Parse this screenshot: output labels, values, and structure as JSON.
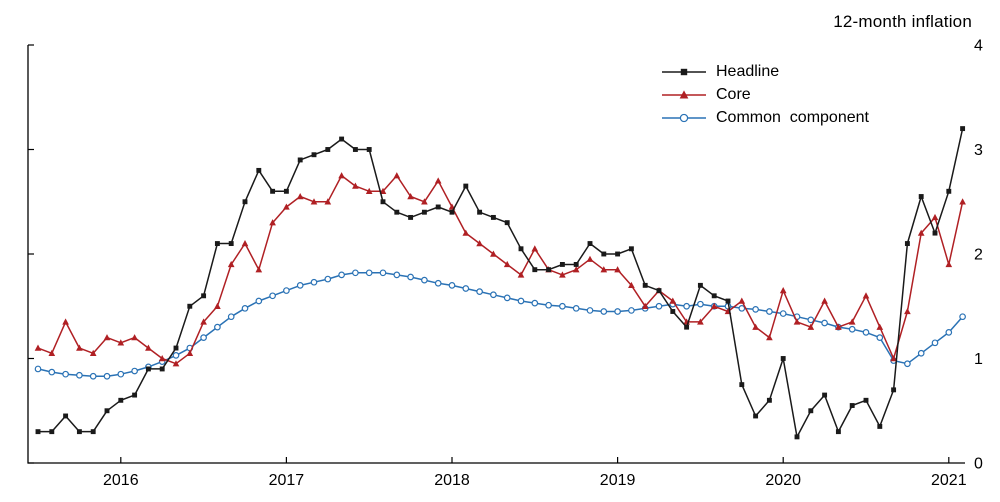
{
  "title": "12-month inflation",
  "chart_data": {
    "type": "line",
    "title": "12-month inflation",
    "xlabel": "",
    "ylabel": "",
    "ylim": [
      0,
      4
    ],
    "y_ticks": [
      0,
      1,
      2,
      3,
      4
    ],
    "y_axis_label_side": "right",
    "grid": false,
    "legend_position": "top-right-inside",
    "frequency": "monthly",
    "x_start": "2015-07",
    "x_end": "2021-02",
    "n_points": 68,
    "x_tick_labels": [
      "2016",
      "2017",
      "2018",
      "2019",
      "2020",
      "2021"
    ],
    "x_tick_month_indices": [
      6,
      18,
      30,
      42,
      54,
      66
    ],
    "series": [
      {
        "id": "headline",
        "name": "Headline",
        "color": "#1a1a1a",
        "marker": "square",
        "values": [
          0.3,
          0.3,
          0.45,
          0.3,
          0.3,
          0.5,
          0.6,
          0.65,
          0.9,
          0.9,
          1.1,
          1.5,
          1.6,
          2.1,
          2.1,
          2.5,
          2.8,
          2.6,
          2.6,
          2.9,
          2.95,
          3.0,
          3.1,
          3.0,
          3.0,
          2.5,
          2.4,
          2.35,
          2.4,
          2.45,
          2.4,
          2.65,
          2.4,
          2.35,
          2.3,
          2.05,
          1.85,
          1.85,
          1.9,
          1.9,
          2.1,
          2.0,
          2.0,
          2.05,
          1.7,
          1.65,
          1.45,
          1.3,
          1.7,
          1.6,
          1.55,
          0.75,
          0.45,
          0.6,
          1.0,
          0.25,
          0.5,
          0.65,
          0.3,
          0.55,
          0.6,
          0.35,
          0.7,
          2.1,
          2.55,
          2.2,
          2.6,
          3.2
        ]
      },
      {
        "id": "core",
        "name": "Core",
        "color": "#b02024",
        "marker": "triangle",
        "values": [
          1.1,
          1.05,
          1.35,
          1.1,
          1.05,
          1.2,
          1.15,
          1.2,
          1.1,
          1.0,
          0.95,
          1.05,
          1.35,
          1.5,
          1.9,
          2.1,
          1.85,
          2.3,
          2.45,
          2.55,
          2.5,
          2.5,
          2.75,
          2.65,
          2.6,
          2.6,
          2.75,
          2.55,
          2.5,
          2.7,
          2.45,
          2.2,
          2.1,
          2.0,
          1.9,
          1.8,
          2.05,
          1.85,
          1.8,
          1.85,
          1.95,
          1.85,
          1.85,
          1.7,
          1.5,
          1.65,
          1.55,
          1.35,
          1.35,
          1.5,
          1.45,
          1.55,
          1.3,
          1.2,
          1.65,
          1.35,
          1.3,
          1.55,
          1.3,
          1.35,
          1.6,
          1.3,
          1.0,
          1.45,
          2.2,
          2.35,
          1.9,
          2.5
        ]
      },
      {
        "id": "common-component",
        "name": "Common  component",
        "color": "#2a72b5",
        "marker": "circle",
        "values": [
          0.9,
          0.87,
          0.85,
          0.84,
          0.83,
          0.83,
          0.85,
          0.88,
          0.92,
          0.97,
          1.03,
          1.1,
          1.2,
          1.3,
          1.4,
          1.48,
          1.55,
          1.6,
          1.65,
          1.7,
          1.73,
          1.76,
          1.8,
          1.82,
          1.82,
          1.82,
          1.8,
          1.78,
          1.75,
          1.72,
          1.7,
          1.67,
          1.64,
          1.61,
          1.58,
          1.55,
          1.53,
          1.51,
          1.5,
          1.48,
          1.46,
          1.45,
          1.45,
          1.46,
          1.48,
          1.5,
          1.52,
          1.5,
          1.52,
          1.5,
          1.5,
          1.48,
          1.47,
          1.45,
          1.43,
          1.4,
          1.37,
          1.34,
          1.3,
          1.28,
          1.25,
          1.2,
          0.98,
          0.95,
          1.05,
          1.15,
          1.25,
          1.4
        ]
      }
    ]
  }
}
